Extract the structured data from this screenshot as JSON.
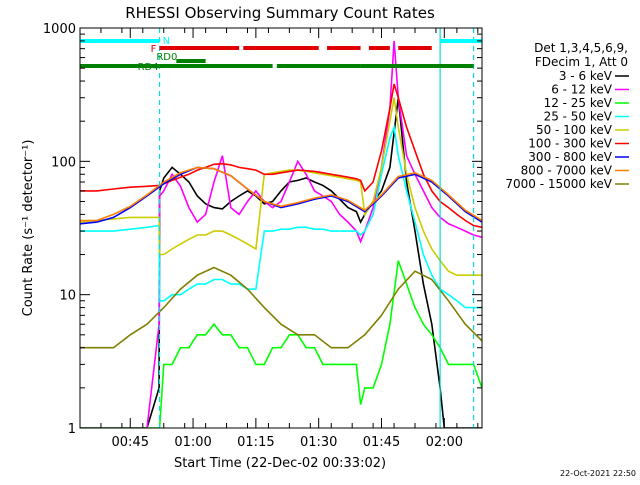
{
  "chart_data": {
    "type": "line",
    "title": "RHESSI Observing Summary Count Rates",
    "xlabel": "Start Time (22-Dec-02 00:33:02)",
    "ylabel": "Count Rate (s⁻¹ detector⁻¹)",
    "yscale": "log",
    "ylim": [
      1,
      1000
    ],
    "xlim_minutes": [
      0,
      96
    ],
    "y_ticks": [
      "1",
      "10",
      "100",
      "1000"
    ],
    "x_ticks": [
      {
        "label": "00:45",
        "minute": 12
      },
      {
        "label": "01:00",
        "minute": 27
      },
      {
        "label": "01:15",
        "minute": 42
      },
      {
        "label": "01:30",
        "minute": 57
      },
      {
        "label": "01:45",
        "minute": 72
      },
      {
        "label": "02:00",
        "minute": 87
      }
    ],
    "timestamp": "22-Oct-2021 22:50",
    "legend": {
      "header": [
        "Det 1,3,4,5,6,9,",
        "FDecim 1, Att 0"
      ],
      "placement": "right"
    },
    "flags": {
      "N_label": "N",
      "F_label": "F",
      "RD0_label": "RD0",
      "RD4_label": "RD4",
      "night": [
        [
          0,
          19
        ],
        [
          86,
          96
        ]
      ],
      "flare": [
        [
          19,
          21
        ],
        [
          21,
          38
        ],
        [
          39,
          57
        ],
        [
          59,
          67
        ],
        [
          69,
          74
        ],
        [
          76,
          84
        ]
      ],
      "rd0": [
        [
          23,
          30
        ]
      ],
      "rd4": [
        [
          0,
          19
        ],
        [
          19,
          46
        ],
        [
          47,
          67
        ],
        [
          67,
          94
        ]
      ]
    },
    "vertical_markers": [
      19,
      86,
      94
    ],
    "series": [
      {
        "name": "3 - 6 keV",
        "color": "#000000",
        "x": [
          0,
          4,
          8,
          12,
          16,
          18.9,
          19,
          20,
          22,
          24,
          26,
          28,
          30,
          32,
          34,
          36,
          38,
          40,
          42,
          44,
          46,
          48,
          50,
          52,
          54,
          56,
          58,
          60,
          62,
          64,
          66,
          67,
          68,
          70,
          72,
          74,
          76,
          78,
          80,
          82,
          84,
          86,
          87,
          88,
          90,
          92,
          94,
          96
        ],
        "y": [
          1,
          1,
          1,
          1,
          1,
          2,
          60,
          75,
          90,
          80,
          70,
          55,
          48,
          45,
          44,
          50,
          55,
          60,
          55,
          48,
          50,
          60,
          70,
          72,
          75,
          70,
          66,
          60,
          52,
          45,
          42,
          35,
          40,
          50,
          60,
          90,
          300,
          70,
          30,
          12,
          6,
          2,
          1,
          1,
          1,
          1,
          1,
          1
        ]
      },
      {
        "name": "6 - 12 keV",
        "color": "#ff00ff",
        "x": [
          0,
          12,
          16,
          18.9,
          19,
          20,
          22,
          24,
          26,
          28,
          30,
          32,
          34,
          36,
          38,
          40,
          42,
          44,
          46,
          48,
          50,
          52,
          54,
          56,
          58,
          60,
          62,
          64,
          66,
          67,
          68,
          70,
          72,
          74,
          75,
          76,
          78,
          80,
          82,
          84,
          86,
          88,
          90,
          92,
          94,
          96
        ],
        "y": [
          1,
          1,
          1,
          6,
          55,
          60,
          80,
          65,
          45,
          35,
          40,
          70,
          110,
          45,
          40,
          50,
          60,
          50,
          45,
          50,
          70,
          100,
          80,
          60,
          55,
          50,
          40,
          35,
          30,
          25,
          30,
          45,
          90,
          250,
          800,
          300,
          110,
          80,
          60,
          45,
          38,
          34,
          32,
          30,
          28,
          27
        ]
      },
      {
        "name": "12 - 25 keV",
        "color": "#00ff00",
        "x": [
          0,
          12,
          18,
          19,
          20,
          22,
          24,
          26,
          28,
          30,
          32,
          34,
          36,
          38,
          40,
          42,
          44,
          46,
          48,
          50,
          52,
          54,
          56,
          58,
          60,
          62,
          64,
          66,
          67,
          68,
          70,
          72,
          74,
          76,
          78,
          80,
          82,
          84,
          86,
          88,
          90,
          92,
          94,
          96
        ],
        "y": [
          1,
          1,
          1,
          1,
          3,
          3,
          4,
          4,
          5,
          5,
          6,
          5,
          5,
          4,
          4,
          3,
          3,
          4,
          4,
          5,
          5,
          4,
          4,
          3,
          3,
          3,
          3,
          3,
          1.5,
          2,
          2,
          3,
          6,
          18,
          12,
          8,
          6,
          5,
          4,
          3,
          3,
          3,
          3,
          2
        ]
      },
      {
        "name": "25 - 50 keV",
        "color": "#00ffff",
        "x": [
          0,
          4,
          8,
          12,
          16,
          18.9,
          19,
          20,
          22,
          24,
          26,
          28,
          30,
          32,
          34,
          36,
          38,
          40,
          42,
          44,
          46,
          48,
          50,
          52,
          54,
          56,
          58,
          60,
          62,
          64,
          66,
          67,
          68,
          70,
          72,
          74,
          75,
          76,
          78,
          80,
          82,
          84,
          86,
          88,
          90,
          92,
          94,
          96
        ],
        "y": [
          30,
          30,
          30,
          31,
          32,
          33,
          9,
          9,
          10,
          10,
          11,
          12,
          12,
          13,
          13,
          12,
          12,
          11,
          11,
          30,
          30,
          31,
          31,
          32,
          32,
          31,
          31,
          30,
          30,
          30,
          30,
          28,
          30,
          40,
          80,
          150,
          180,
          110,
          60,
          35,
          20,
          14,
          11,
          10,
          9,
          8,
          8,
          8
        ]
      },
      {
        "name": "50 - 100 keV",
        "color": "#cccc00",
        "x": [
          0,
          4,
          8,
          12,
          16,
          18.9,
          19,
          20,
          22,
          24,
          26,
          28,
          30,
          32,
          34,
          36,
          38,
          40,
          42,
          44,
          46,
          48,
          50,
          52,
          54,
          56,
          58,
          60,
          62,
          64,
          66,
          67,
          68,
          70,
          72,
          74,
          75,
          76,
          78,
          80,
          82,
          84,
          86,
          88,
          90,
          92,
          94,
          96
        ],
        "y": [
          35,
          36,
          37,
          38,
          38,
          38,
          20,
          20,
          22,
          24,
          26,
          28,
          28,
          30,
          30,
          28,
          26,
          24,
          22,
          80,
          82,
          84,
          86,
          86,
          84,
          82,
          80,
          78,
          76,
          74,
          72,
          70,
          40,
          50,
          90,
          200,
          300,
          180,
          80,
          45,
          30,
          22,
          18,
          15,
          14,
          14,
          14,
          14
        ]
      },
      {
        "name": "100 - 300 keV",
        "color": "#ff0000",
        "x": [
          0,
          4,
          8,
          12,
          16,
          18.9,
          19,
          20,
          22,
          24,
          26,
          28,
          30,
          32,
          34,
          36,
          38,
          40,
          42,
          44,
          46,
          48,
          50,
          52,
          54,
          56,
          58,
          60,
          62,
          64,
          66,
          67,
          68,
          70,
          72,
          74,
          75,
          76,
          78,
          80,
          82,
          84,
          86,
          88,
          90,
          92,
          94,
          96
        ],
        "y": [
          60,
          60,
          62,
          64,
          65,
          66,
          65,
          68,
          72,
          76,
          80,
          86,
          90,
          95,
          96,
          94,
          90,
          88,
          86,
          80,
          80,
          82,
          84,
          86,
          85,
          84,
          82,
          80,
          78,
          76,
          74,
          72,
          60,
          70,
          120,
          250,
          380,
          300,
          180,
          120,
          80,
          60,
          50,
          45,
          40,
          36,
          33,
          32
        ]
      },
      {
        "name": "300 - 800 keV",
        "color": "#0000ff",
        "x": [
          0,
          4,
          8,
          12,
          16,
          20,
          24,
          28,
          32,
          36,
          40,
          44,
          48,
          52,
          56,
          60,
          64,
          68,
          72,
          76,
          80,
          84,
          88,
          92,
          96
        ],
        "y": [
          34,
          35,
          38,
          45,
          55,
          68,
          80,
          90,
          88,
          78,
          62,
          50,
          45,
          48,
          52,
          55,
          50,
          42,
          55,
          75,
          80,
          70,
          55,
          42,
          35
        ]
      },
      {
        "name": "800 - 7000 keV",
        "color": "#ff8000",
        "x": [
          0,
          4,
          8,
          12,
          16,
          20,
          24,
          28,
          32,
          36,
          40,
          44,
          48,
          52,
          56,
          60,
          64,
          68,
          72,
          76,
          80,
          84,
          88,
          92,
          96
        ],
        "y": [
          36,
          36,
          40,
          46,
          56,
          70,
          82,
          90,
          88,
          78,
          62,
          50,
          46,
          49,
          53,
          56,
          51,
          43,
          56,
          77,
          82,
          72,
          56,
          43,
          36
        ]
      },
      {
        "name": "7000 - 15000 keV",
        "color": "#808000",
        "x": [
          0,
          4,
          8,
          12,
          16,
          20,
          24,
          28,
          32,
          36,
          40,
          44,
          48,
          52,
          56,
          60,
          64,
          68,
          72,
          76,
          80,
          84,
          88,
          92,
          96
        ],
        "y": [
          4,
          4,
          4,
          5,
          6,
          8,
          11,
          14,
          16,
          14,
          11,
          8,
          6,
          5,
          5,
          4,
          4,
          5,
          7,
          11,
          15,
          13,
          9,
          6,
          4.5
        ]
      }
    ]
  }
}
